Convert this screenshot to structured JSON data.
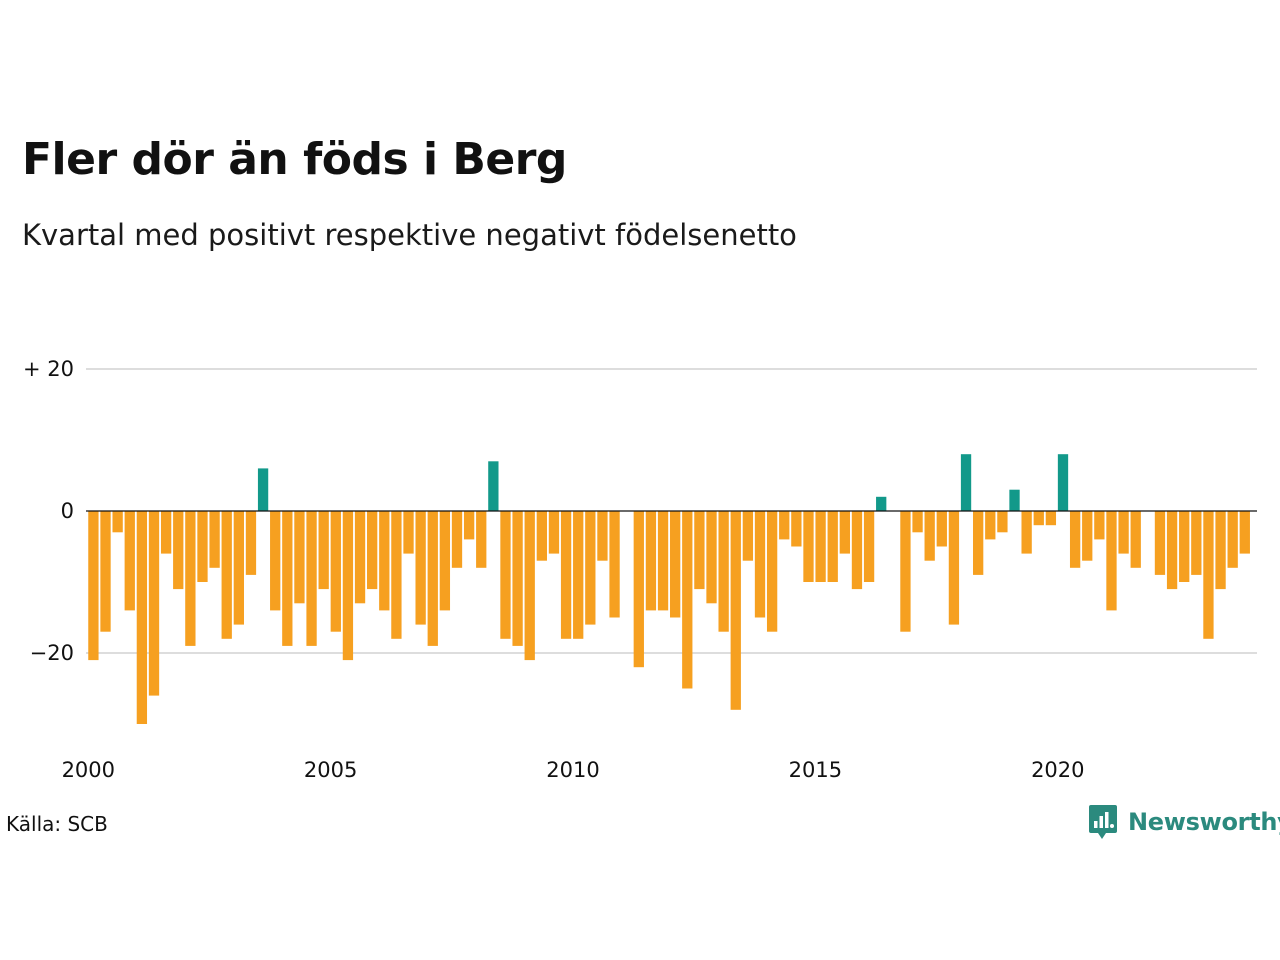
{
  "header": {
    "title": "Fler dör än föds i Berg",
    "subtitle": "Kvartal med positivt respektive negativt födelsenetto"
  },
  "footer": {
    "source": "Källa: SCB",
    "brand": "Newsworthy",
    "brand_icon": "newsworthy-chart-bubble-icon"
  },
  "colors": {
    "positive": "#12998a",
    "negative": "#f6a020",
    "grid": "#dddddd",
    "brand": "#2b8a7e"
  },
  "chart_data": {
    "type": "bar",
    "title": "Fler dör än föds i Berg",
    "subtitle": "Kvartal med positivt respektive negativt födelsenetto",
    "x_start": 2000,
    "x_step_per_bar": 0.25,
    "x_ticks": [
      2000,
      2005,
      2010,
      2015,
      2020
    ],
    "x_tick_labels": [
      "2000",
      "2005",
      "2010",
      "2015",
      "2020"
    ],
    "y_ticks": [
      20,
      0,
      -20
    ],
    "y_tick_labels": [
      "+ 20",
      "0",
      "−20"
    ],
    "ylim": [
      -32,
      20
    ],
    "grid": true,
    "legend": "none",
    "values": [
      -21,
      -17,
      -3,
      -14,
      -30,
      -26,
      -6,
      -11,
      -19,
      -10,
      -8,
      -18,
      -16,
      -9,
      6,
      -14,
      -19,
      -13,
      -19,
      -11,
      -17,
      -21,
      -13,
      -11,
      -14,
      -18,
      -6,
      -16,
      -19,
      -14,
      -8,
      -4,
      -8,
      7,
      -18,
      -19,
      -21,
      -7,
      -6,
      -18,
      -18,
      -16,
      -7,
      -15,
      0,
      -22,
      -14,
      -14,
      -15,
      -25,
      -11,
      -13,
      -17,
      -28,
      -7,
      -15,
      -17,
      -4,
      -5,
      -10,
      -10,
      -10,
      -6,
      -11,
      -10,
      2,
      0,
      -17,
      -3,
      -7,
      -5,
      -16,
      8,
      -9,
      -4,
      -3,
      3,
      -6,
      -2,
      -2,
      8,
      -8,
      -7,
      -4,
      -14,
      -6,
      -8,
      0,
      -9,
      -11,
      -10,
      -9,
      -18,
      -11,
      -8,
      -6
    ]
  }
}
